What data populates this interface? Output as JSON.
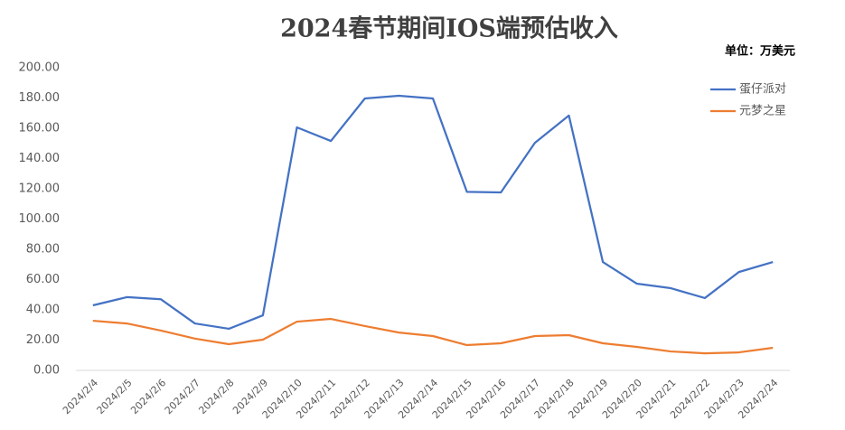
{
  "chart_data": {
    "type": "line",
    "title": "2024春节期间IOS端预估收入",
    "subtitle": "单位：万美元",
    "categories": [
      "2024/2/4",
      "2024/2/5",
      "2024/2/6",
      "2024/2/7",
      "2024/2/8",
      "2024/2/9",
      "2024/2/10",
      "2024/2/11",
      "2024/2/12",
      "2024/2/13",
      "2024/2/14",
      "2024/2/15",
      "2024/2/16",
      "2024/2/17",
      "2024/2/18",
      "2024/2/19",
      "2024/2/20",
      "2024/2/21",
      "2024/2/22",
      "2024/2/23",
      "2024/2/24"
    ],
    "series": [
      {
        "name": "蛋仔派对",
        "color": "#4472c4",
        "values": [
          43,
          48.4,
          47,
          31,
          27.5,
          36.4,
          160.6,
          151.6,
          179.7,
          181.5,
          179.7,
          118,
          117.6,
          150.4,
          168.4,
          71.6,
          57.3,
          54.3,
          47.8,
          65,
          71.6
        ]
      },
      {
        "name": "元梦之星",
        "color": "#ed7d31",
        "values": [
          32.8,
          31,
          26.3,
          21,
          17.3,
          20.3,
          32.2,
          34,
          29.3,
          25,
          22.7,
          16.7,
          17.9,
          22.7,
          23.3,
          17.9,
          15.5,
          12.5,
          11.3,
          11.9,
          14.9
        ]
      }
    ],
    "ylim": [
      0,
      200
    ],
    "yticks": [
      {
        "value": 0,
        "label": "0.00"
      },
      {
        "value": 20,
        "label": "20.00"
      },
      {
        "value": 40,
        "label": "40.00"
      },
      {
        "value": 60,
        "label": "60.00"
      },
      {
        "value": 80,
        "label": "80.00"
      },
      {
        "value": 100,
        "label": "100.00"
      },
      {
        "value": 120,
        "label": "120.00"
      },
      {
        "value": 140,
        "label": "140.00"
      },
      {
        "value": 160,
        "label": "160.00"
      },
      {
        "value": 180,
        "label": "180.00"
      },
      {
        "value": 200,
        "label": "200.00"
      }
    ],
    "grid": false,
    "legend": "right"
  }
}
